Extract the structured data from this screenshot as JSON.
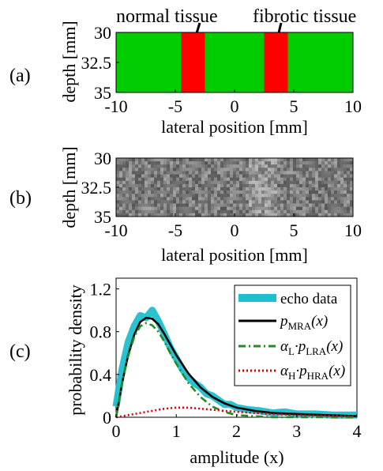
{
  "panels": {
    "a": {
      "label": "(a)"
    },
    "b": {
      "label": "(b)"
    },
    "c": {
      "label": "(c)"
    }
  },
  "annotations": {
    "normal_tissue": "normal tissue",
    "fibrotic_tissue": "fibrotic tissue"
  },
  "colors": {
    "background_region": "#00cc00",
    "inclusion_region": "#ff0000",
    "echo_data": "#1fbfcf",
    "mra": "#000000",
    "lra": "#228b22",
    "hra": "#e00000"
  },
  "chart_data": [
    {
      "panel": "a",
      "type": "heatmap",
      "xlabel": "lateral position [mm]",
      "ylabel": "depth [mm]",
      "xlim": [
        -10,
        10
      ],
      "ylim": [
        35,
        30
      ],
      "x_ticks": [
        "-10",
        "-5",
        "0",
        "5",
        "10"
      ],
      "y_ticks": [
        "30",
        "32.5",
        "35"
      ],
      "regions": [
        {
          "name": "normal tissue",
          "x_range": [
            -4.5,
            -2.5
          ],
          "fill": "inclusion"
        },
        {
          "name": "fibrotic tissue",
          "x_range": [
            2.5,
            4.5
          ],
          "fill": "inclusion"
        }
      ]
    },
    {
      "panel": "b",
      "type": "heatmap",
      "xlabel": "lateral position [mm]",
      "ylabel": "depth [mm]",
      "xlim": [
        -10,
        10
      ],
      "ylim": [
        35,
        30
      ],
      "x_ticks": [
        "-10",
        "-5",
        "0",
        "5",
        "10"
      ],
      "y_ticks": [
        "30",
        "32.5",
        "35"
      ],
      "colormap": "gray"
    },
    {
      "panel": "c",
      "type": "line",
      "xlabel": "amplitude (x)",
      "ylabel": "probability density",
      "xlim": [
        0,
        4
      ],
      "ylim": [
        0,
        1.3
      ],
      "x_ticks": [
        "0",
        "1",
        "2",
        "3",
        "4"
      ],
      "y_ticks": [
        "0",
        "0.4",
        "0.8",
        "1.2"
      ],
      "legend_position": "top-right",
      "series": [
        {
          "name": "echo data",
          "key": "echo",
          "x": [
            0,
            0.1,
            0.2,
            0.3,
            0.4,
            0.5,
            0.6,
            0.7,
            0.8,
            0.9,
            1.0,
            1.1,
            1.2,
            1.3,
            1.4,
            1.5,
            1.6,
            1.7,
            1.8,
            1.9,
            2.0,
            2.2,
            2.4,
            2.6,
            2.8,
            3.0,
            3.3,
            3.6,
            4.0
          ],
          "y": [
            0.1,
            0.45,
            0.7,
            0.85,
            0.95,
            0.93,
            1.0,
            0.9,
            0.78,
            0.65,
            0.55,
            0.45,
            0.37,
            0.32,
            0.28,
            0.22,
            0.2,
            0.16,
            0.12,
            0.12,
            0.09,
            0.07,
            0.06,
            0.04,
            0.05,
            0.03,
            0.03,
            0.02,
            0.02
          ]
        },
        {
          "name_main": "p",
          "name_sub": "MRA",
          "name_tail": "(x)",
          "key": "mra",
          "x": [
            0,
            0.1,
            0.2,
            0.3,
            0.4,
            0.5,
            0.6,
            0.7,
            0.8,
            0.9,
            1.0,
            1.2,
            1.4,
            1.6,
            1.8,
            2.0,
            2.3,
            2.6,
            3.0,
            3.5,
            4.0
          ],
          "y": [
            0,
            0.32,
            0.58,
            0.77,
            0.89,
            0.93,
            0.92,
            0.87,
            0.78,
            0.68,
            0.58,
            0.41,
            0.28,
            0.19,
            0.13,
            0.09,
            0.06,
            0.04,
            0.03,
            0.02,
            0.01
          ]
        },
        {
          "name_main": "α",
          "name_sub": "L",
          "name_mid": "·p",
          "name_sub2": "LRA",
          "name_tail": "(x)",
          "key": "lra",
          "x": [
            0,
            0.1,
            0.2,
            0.3,
            0.4,
            0.5,
            0.6,
            0.7,
            0.8,
            0.9,
            1.0,
            1.2,
            1.4,
            1.6,
            1.8,
            2.0,
            2.3,
            2.6,
            3.0,
            3.5,
            4.0
          ],
          "y": [
            0,
            0.32,
            0.57,
            0.75,
            0.85,
            0.88,
            0.86,
            0.8,
            0.71,
            0.6,
            0.5,
            0.32,
            0.19,
            0.1,
            0.05,
            0.02,
            0.01,
            0,
            0,
            0,
            0
          ]
        },
        {
          "name_main": "α",
          "name_sub": "H",
          "name_mid": "·p",
          "name_sub2": "HRA",
          "name_tail": "(x)",
          "key": "hra",
          "x": [
            0,
            0.2,
            0.4,
            0.6,
            0.8,
            1.0,
            1.2,
            1.4,
            1.6,
            1.8,
            2.0,
            2.3,
            2.6,
            3.0,
            3.5,
            4.0
          ],
          "y": [
            0,
            0.02,
            0.04,
            0.06,
            0.08,
            0.09,
            0.09,
            0.08,
            0.07,
            0.06,
            0.05,
            0.04,
            0.03,
            0.02,
            0.015,
            0.01
          ]
        }
      ]
    }
  ]
}
